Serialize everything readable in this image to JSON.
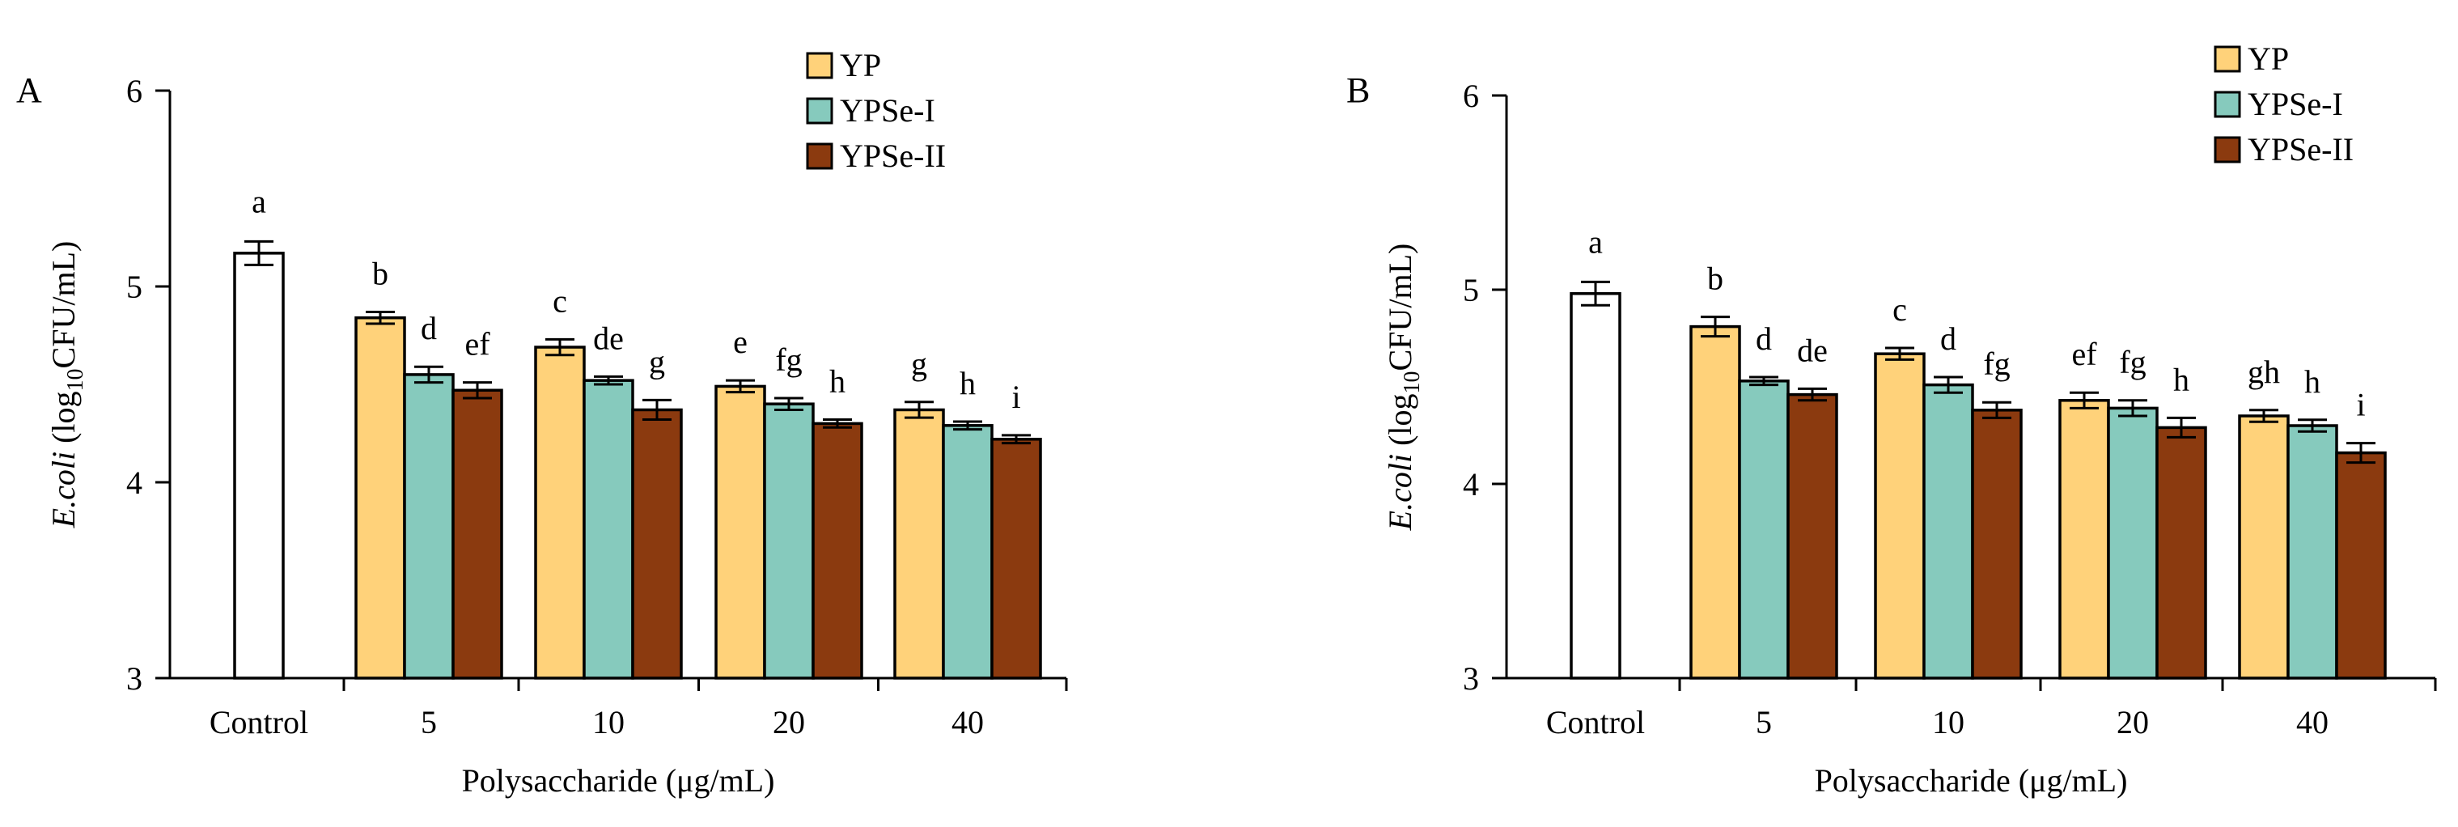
{
  "colors": {
    "YP": "#FFD27A",
    "YPSe-I": "#86CABD",
    "YPSe-II": "#8B3A0F",
    "Control": "#FFFFFF",
    "stroke": "#000000"
  },
  "chart_data": [
    {
      "type": "bar",
      "panel_label": "A",
      "ylabel_italic": "E.coli",
      "ylabel_main": " (log",
      "ylabel_sub": "10",
      "ylabel_tail": "CFU/mL)",
      "xlabel": "Polysaccharide (μg/mL)",
      "ylim": [
        3,
        6
      ],
      "yticks": [
        "3",
        "4",
        "5",
        "6"
      ],
      "groups": [
        "Control",
        "5",
        "10",
        "20",
        "40"
      ],
      "legend": [
        "YP",
        "YPSe-I",
        "YPSe-II"
      ],
      "control": {
        "value": 5.17,
        "error": 0.06,
        "letter": "a"
      },
      "series": [
        {
          "name": "YP",
          "values": [
            4.84,
            4.69,
            4.49,
            4.37
          ],
          "errors": [
            0.03,
            0.04,
            0.03,
            0.04
          ],
          "letters": [
            "b",
            "c",
            "e",
            "g"
          ]
        },
        {
          "name": "YPSe-I",
          "values": [
            4.55,
            4.52,
            4.4,
            4.29
          ],
          "errors": [
            0.04,
            0.02,
            0.03,
            0.02
          ],
          "letters": [
            "d",
            "de",
            "fg",
            "h"
          ]
        },
        {
          "name": "YPSe-II",
          "values": [
            4.47,
            4.37,
            4.3,
            4.22
          ],
          "errors": [
            0.04,
            0.05,
            0.02,
            0.02
          ],
          "letters": [
            "ef",
            "g",
            "h",
            "i"
          ]
        }
      ]
    },
    {
      "type": "bar",
      "panel_label": "B",
      "ylabel_italic": "E.coli",
      "ylabel_main": " (log",
      "ylabel_sub": "10",
      "ylabel_tail": "CFU/mL)",
      "xlabel": "Polysaccharide (μg/mL)",
      "ylim": [
        3,
        6
      ],
      "yticks": [
        "3",
        "4",
        "5",
        "6"
      ],
      "groups": [
        "Control",
        "5",
        "10",
        "20",
        "40"
      ],
      "legend": [
        "YP",
        "YPSe-I",
        "YPSe-II"
      ],
      "control": {
        "value": 4.98,
        "error": 0.06,
        "letter": "a"
      },
      "series": [
        {
          "name": "YP",
          "values": [
            4.81,
            4.67,
            4.43,
            4.35
          ],
          "errors": [
            0.05,
            0.03,
            0.04,
            0.03
          ],
          "letters": [
            "b",
            "c",
            "ef",
            "gh"
          ]
        },
        {
          "name": "YPSe-I",
          "values": [
            4.53,
            4.51,
            4.39,
            4.3
          ],
          "errors": [
            0.02,
            0.04,
            0.04,
            0.03
          ],
          "letters": [
            "d",
            "d",
            "fg",
            "h"
          ]
        },
        {
          "name": "YPSe-II",
          "values": [
            4.46,
            4.38,
            4.29,
            4.16
          ],
          "errors": [
            0.03,
            0.04,
            0.05,
            0.05
          ],
          "letters": [
            "de",
            "fg",
            "h",
            "i"
          ]
        }
      ]
    }
  ]
}
